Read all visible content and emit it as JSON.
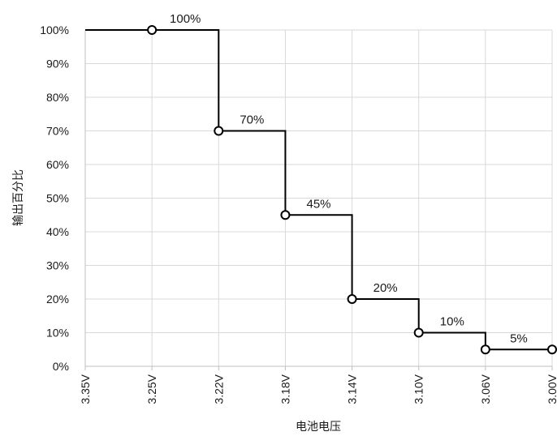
{
  "chart_data": {
    "type": "line",
    "step": true,
    "xlabel": "电池电压",
    "ylabel": "输出百分比",
    "x_ticks": [
      "3.35V",
      "3.25V",
      "3.22V",
      "3.18V",
      "3.14V",
      "3.10V",
      "3.06V",
      "3.00V"
    ],
    "y_ticks": [
      "0%",
      "10%",
      "20%",
      "30%",
      "40%",
      "50%",
      "60%",
      "70%",
      "80%",
      "90%",
      "100%"
    ],
    "ylim": [
      0,
      100
    ],
    "grid": true,
    "points": [
      {
        "x": "3.25V",
        "y": 100
      },
      {
        "x": "3.22V",
        "y": 70
      },
      {
        "x": "3.18V",
        "y": 45
      },
      {
        "x": "3.14V",
        "y": 20
      },
      {
        "x": "3.10V",
        "y": 10
      },
      {
        "x": "3.06V",
        "y": 5
      },
      {
        "x": "3.00V",
        "y": 5
      }
    ],
    "steps": [
      {
        "from": "3.35V",
        "to": "3.22V",
        "y": 100,
        "label": "100%"
      },
      {
        "from": "3.22V",
        "to": "3.18V",
        "y": 70,
        "label": "70%"
      },
      {
        "from": "3.18V",
        "to": "3.14V",
        "y": 45,
        "label": "45%"
      },
      {
        "from": "3.14V",
        "to": "3.10V",
        "y": 20,
        "label": "20%"
      },
      {
        "from": "3.10V",
        "to": "3.06V",
        "y": 10,
        "label": "10%"
      },
      {
        "from": "3.06V",
        "to": "3.00V",
        "y": 5,
        "label": "5%"
      }
    ],
    "line_color": "#000000",
    "marker_fill": "#ffffff"
  }
}
